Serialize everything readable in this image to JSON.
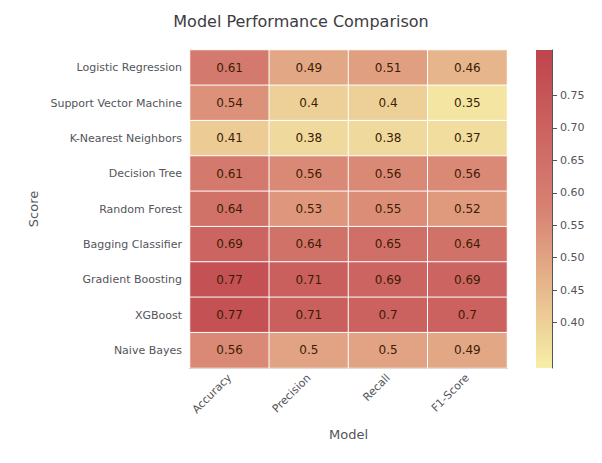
{
  "chart_data": {
    "type": "heatmap",
    "title": "Model Performance Comparison",
    "xlabel": "Model",
    "ylabel": "Score",
    "x": [
      "Accuracy",
      "Precision",
      "Recall",
      "F1-Score"
    ],
    "y": [
      "Logistic Regression",
      "Support Vector Machine",
      "K-Nearest Neighbors",
      "Decision Tree",
      "Random Forest",
      "Bagging Classifier",
      "Gradient Boosting",
      "XGBoost",
      "Naive Bayes"
    ],
    "values": [
      [
        0.61,
        0.49,
        0.51,
        0.46
      ],
      [
        0.54,
        0.4,
        0.4,
        0.35
      ],
      [
        0.41,
        0.38,
        0.38,
        0.37
      ],
      [
        0.61,
        0.56,
        0.56,
        0.56
      ],
      [
        0.64,
        0.53,
        0.55,
        0.52
      ],
      [
        0.69,
        0.64,
        0.65,
        0.64
      ],
      [
        0.77,
        0.71,
        0.69,
        0.69
      ],
      [
        0.77,
        0.71,
        0.7,
        0.7
      ],
      [
        0.56,
        0.5,
        0.5,
        0.49
      ]
    ],
    "colorbar_lim": [
      0.33,
      0.82
    ],
    "colorbar_ticks": [
      {
        "value": 0.4,
        "label": "0.40"
      },
      {
        "value": 0.45,
        "label": "0.45"
      },
      {
        "value": 0.5,
        "label": "0.50"
      },
      {
        "value": 0.55,
        "label": "0.55"
      },
      {
        "value": 0.6,
        "label": "0.60"
      },
      {
        "value": 0.65,
        "label": "0.65"
      },
      {
        "value": 0.7,
        "label": "0.70"
      },
      {
        "value": 0.75,
        "label": "0.75"
      }
    ],
    "data_labels": true,
    "grid": false
  }
}
